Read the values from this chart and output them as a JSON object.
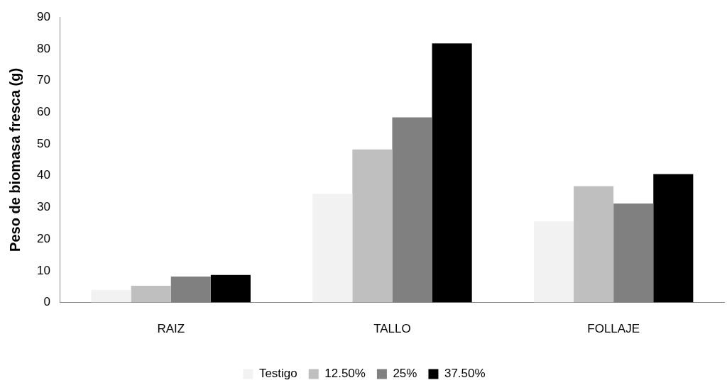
{
  "chart_data": {
    "type": "bar",
    "ylabel": "Peso de biomasa fresca (g)",
    "categories": [
      "RAIZ",
      "TALLO",
      "FOLLAJE"
    ],
    "series": [
      {
        "name": "Testigo",
        "color": "#f2f2f2",
        "values": [
          4.0,
          34.3,
          25.6
        ]
      },
      {
        "name": "12.50%",
        "color": "#bfbfbf",
        "values": [
          5.3,
          48.3,
          36.7
        ]
      },
      {
        "name": "25%",
        "color": "#808080",
        "values": [
          8.2,
          58.4,
          31.2
        ]
      },
      {
        "name": "37.50%",
        "color": "#000000",
        "values": [
          8.7,
          81.7,
          40.5
        ]
      }
    ],
    "ylim": [
      0,
      90
    ],
    "yticks": [
      0,
      10,
      20,
      30,
      40,
      50,
      60,
      70,
      80,
      90
    ],
    "grid": false,
    "legend": "bottom"
  }
}
